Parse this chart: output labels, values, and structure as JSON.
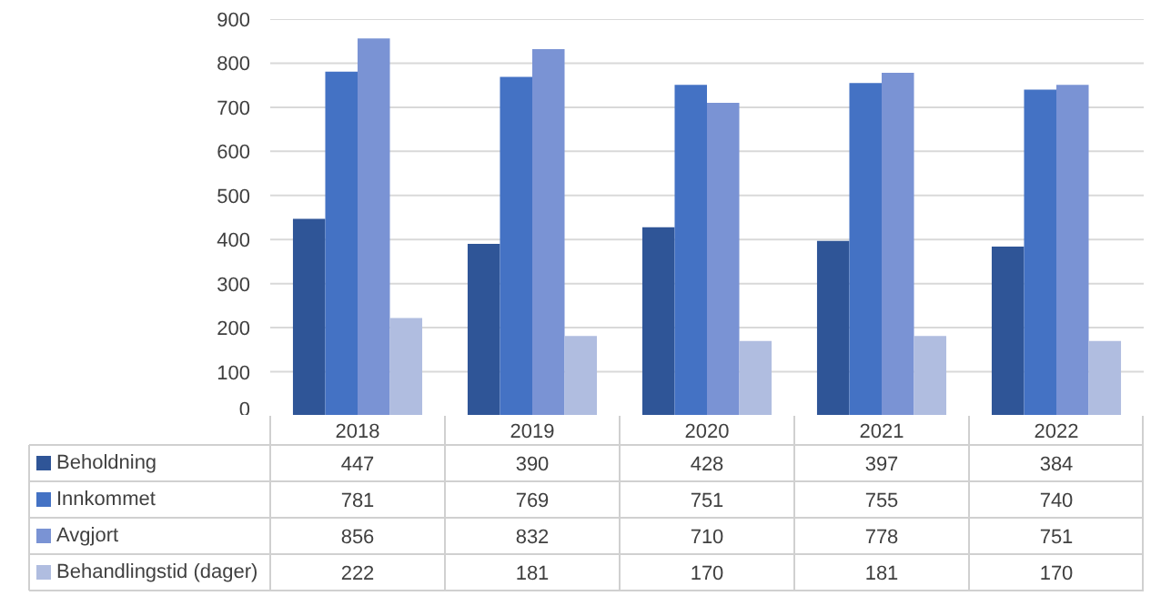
{
  "chart_data": {
    "type": "bar",
    "categories": [
      "2018",
      "2019",
      "2020",
      "2021",
      "2022"
    ],
    "series": [
      {
        "name": "Beholdning",
        "color": "#2f5597",
        "values": [
          447,
          390,
          428,
          397,
          384
        ]
      },
      {
        "name": "Innkommet",
        "color": "#4472c4",
        "values": [
          781,
          769,
          751,
          755,
          740
        ]
      },
      {
        "name": "Avgjort",
        "color": "#7a93d4",
        "values": [
          856,
          832,
          710,
          778,
          751
        ]
      },
      {
        "name": "Behandlingstid (dager)",
        "color": "#b0bde0",
        "values": [
          222,
          181,
          170,
          181,
          170
        ]
      }
    ],
    "ylim": [
      0,
      900
    ],
    "yticks": [
      0,
      100,
      200,
      300,
      400,
      500,
      600,
      700,
      800,
      900
    ],
    "grid": "y",
    "legend": "bottom",
    "data_labels": true
  }
}
